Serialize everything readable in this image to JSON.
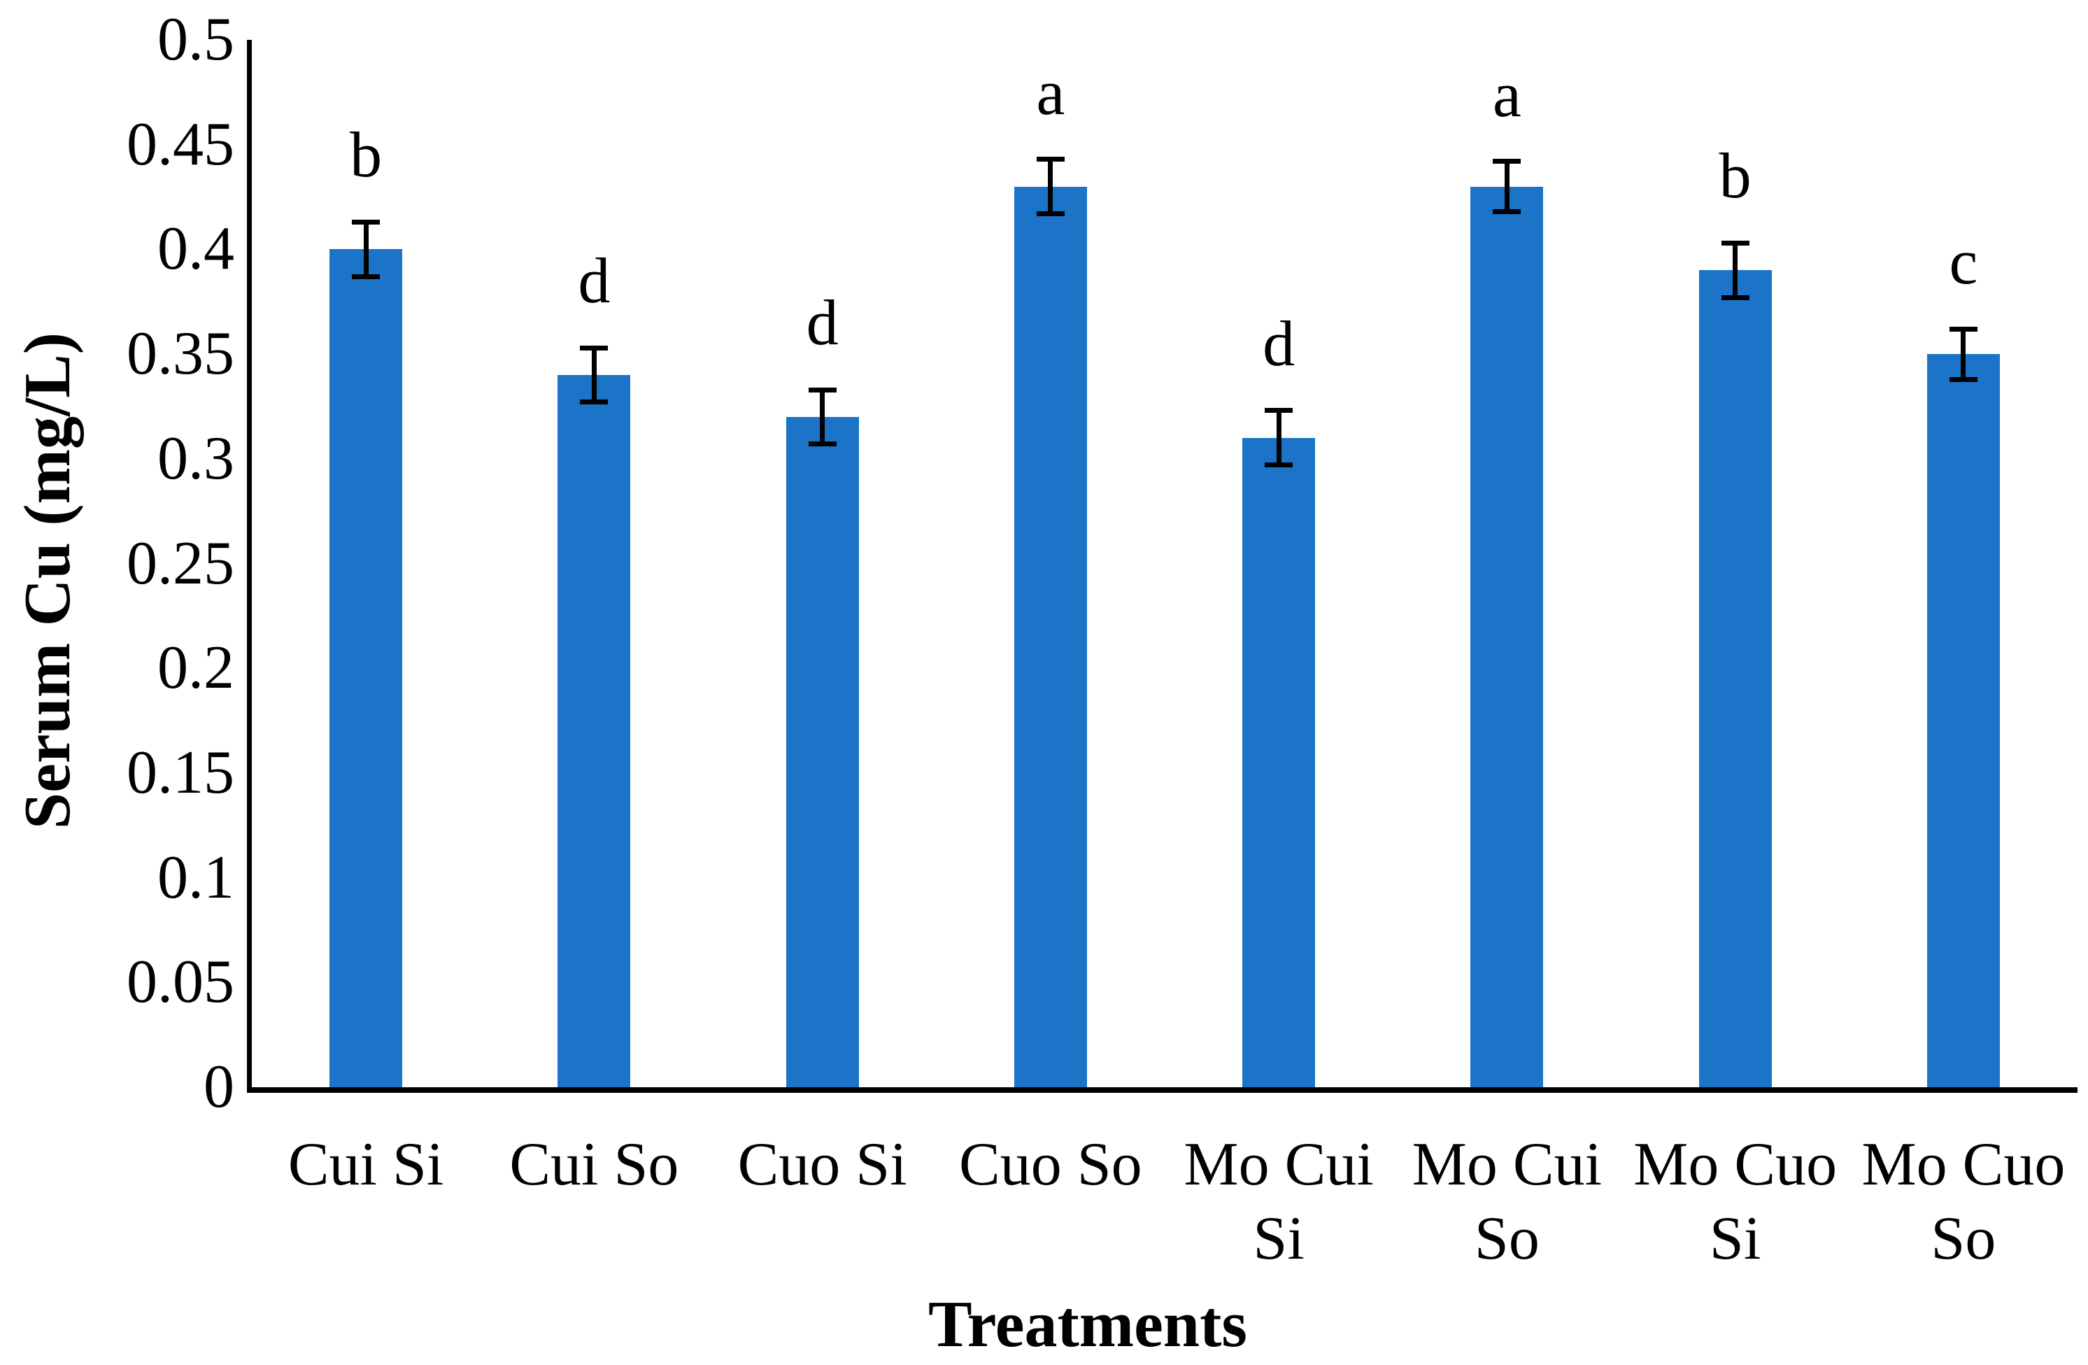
{
  "chart_data": {
    "type": "bar",
    "title": "",
    "xlabel": "Treatments",
    "ylabel": "Serum Cu (mg/L)",
    "ylim": [
      0,
      0.5
    ],
    "ytick_step": 0.05,
    "ytick_labels": [
      "0",
      "0.05",
      "0.1",
      "0.15",
      "0.2",
      "0.25",
      "0.3",
      "0.35",
      "0.4",
      "0.45",
      "0.5"
    ],
    "categories": [
      "Cui Si",
      "Cui So",
      "Cuo Si",
      "Cuo So",
      "Mo Cui Si",
      "Mo Cui So",
      "Mo Cuo Si",
      "Mo Cuo So"
    ],
    "category_lines": [
      [
        "Cui Si"
      ],
      [
        "Cui So"
      ],
      [
        "Cuo Si"
      ],
      [
        "Cuo So"
      ],
      [
        "Mo Cui",
        "Si"
      ],
      [
        "Mo Cui",
        "So"
      ],
      [
        "Mo Cuo",
        "Si"
      ],
      [
        "Mo Cuo",
        "So"
      ]
    ],
    "values": [
      0.4,
      0.34,
      0.32,
      0.43,
      0.31,
      0.43,
      0.39,
      0.35
    ],
    "error_bars": [
      0.013,
      0.013,
      0.013,
      0.013,
      0.013,
      0.012,
      0.013,
      0.012
    ],
    "significance_letters": [
      "b",
      "d",
      "d",
      "a",
      "d",
      "a",
      "b",
      "c"
    ],
    "bar_color": "#1B74C8",
    "axis_color": "#000000",
    "error_bar_color": "#000000",
    "grid": false,
    "legend": false
  }
}
